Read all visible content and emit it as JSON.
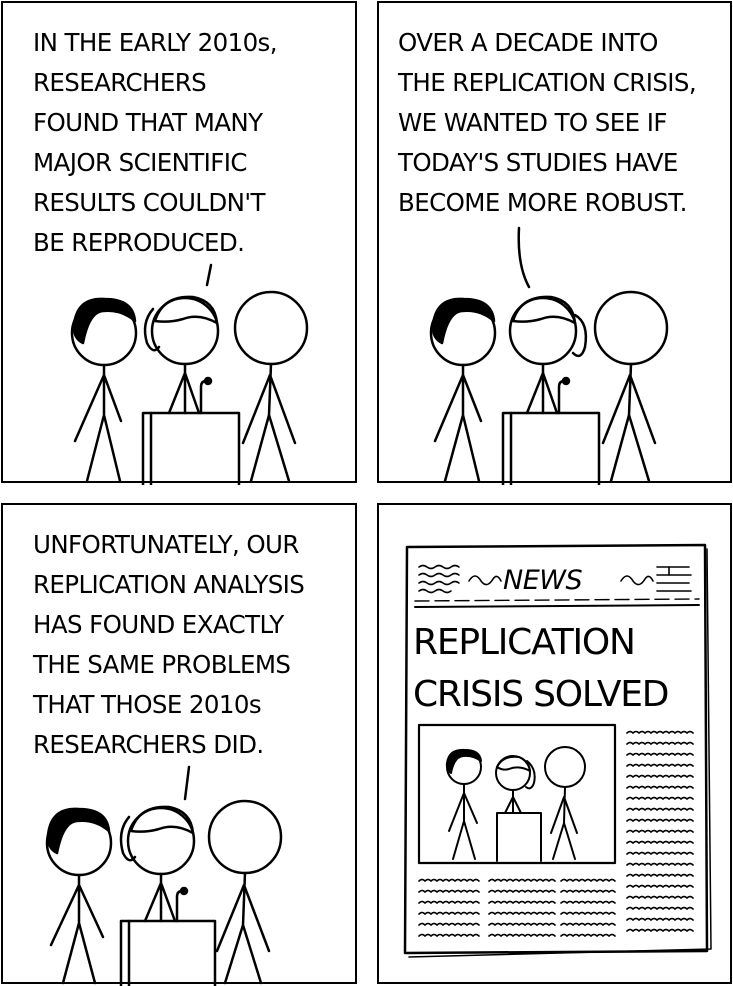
{
  "panels": [
    {
      "caption": [
        "IN THE EARLY 2010s,",
        "RESEARCHERS",
        "FOUND THAT MANY",
        "MAJOR SCIENTIFIC",
        "RESULTS COULDN'T",
        "BE REPRODUCED."
      ]
    },
    {
      "caption": [
        "OVER A DECADE INTO",
        "THE REPLICATION CRISIS,",
        "WE WANTED TO SEE IF",
        "TODAY'S STUDIES HAVE",
        "BECOME MORE ROBUST."
      ]
    },
    {
      "caption": [
        "UNFORTUNATELY, OUR",
        "REPLICATION ANALYSIS",
        "HAS FOUND EXACTLY",
        "THE SAME PROBLEMS",
        "THAT THOSE 2010s",
        "RESEARCHERS DID."
      ]
    }
  ],
  "newspaper": {
    "masthead": "NEWS",
    "headline": [
      "REPLICATION",
      "CRISIS SOLVED"
    ]
  }
}
